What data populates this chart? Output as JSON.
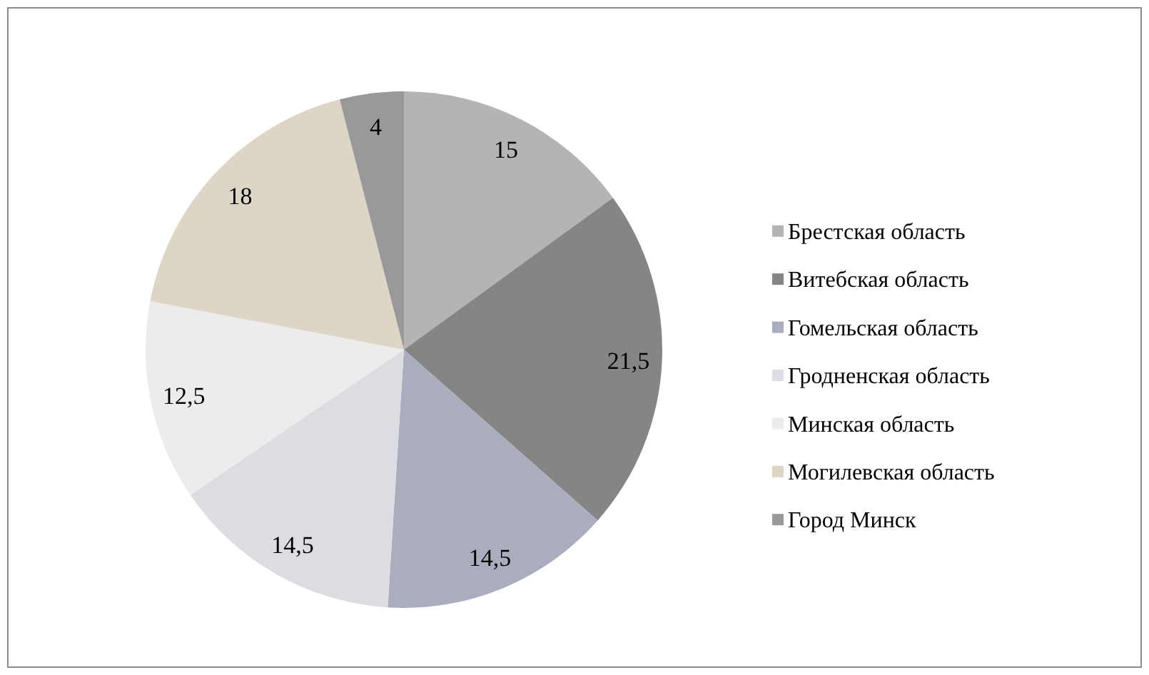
{
  "chart_data": {
    "type": "pie",
    "categories": [
      "Брестская область",
      "Витебская область",
      "Гомельская область",
      "Гродненская область",
      "Минская область",
      "Могилевская область",
      "Город Минск"
    ],
    "values": [
      15,
      21.5,
      14.5,
      14.5,
      12.5,
      18,
      4
    ],
    "colors": [
      "#b4b4b4",
      "#858585",
      "#a9adbd",
      "#dcdde2",
      "#ececec",
      "#ddd5c6",
      "#999999"
    ],
    "value_labels": [
      "15",
      "21,5",
      "14,5",
      "14,5",
      "12,5",
      "18",
      "4"
    ],
    "legend": "right"
  }
}
